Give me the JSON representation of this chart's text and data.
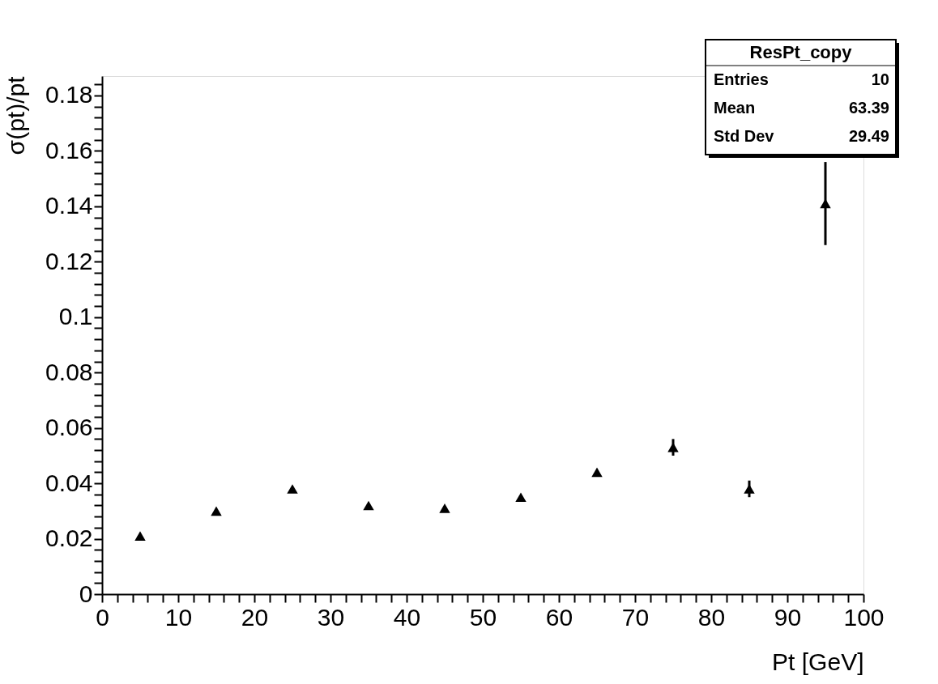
{
  "chart_data": {
    "type": "scatter",
    "title": "ResPt_copy",
    "xlabel": "Pt [GeV]",
    "ylabel": "σ(pt)/pt",
    "x": [
      5,
      15,
      25,
      35,
      45,
      55,
      65,
      75,
      85,
      95
    ],
    "series": [
      {
        "color": "#000000",
        "values": [
          0.021,
          0.03,
          0.038,
          0.032,
          0.031,
          0.035,
          0.044,
          0.053,
          0.038,
          0.141
        ],
        "errors": [
          null,
          null,
          null,
          null,
          null,
          null,
          null,
          0.003,
          0.003,
          0.015
        ]
      }
    ],
    "marker": "triangle",
    "xlim": [
      0,
      100
    ],
    "xticks": [
      0,
      {
        "value": 2,
        "label": null
      },
      {
        "value": 4,
        "label": null
      },
      {
        "value": 6,
        "label": null
      },
      {
        "value": 8,
        "label": null
      },
      10,
      {
        "value": 12,
        "label": null
      },
      {
        "value": 14,
        "label": null
      },
      {
        "value": 16,
        "label": null
      },
      {
        "value": 18,
        "label": null
      },
      20,
      {
        "value": 22,
        "label": null
      },
      {
        "value": 24,
        "label": null
      },
      {
        "value": 26,
        "label": null
      },
      {
        "value": 28,
        "label": null
      },
      30,
      {
        "value": 32,
        "label": null
      },
      {
        "value": 34,
        "label": null
      },
      {
        "value": 36,
        "label": null
      },
      {
        "value": 38,
        "label": null
      },
      40,
      {
        "value": 42,
        "label": null
      },
      {
        "value": 44,
        "label": null
      },
      {
        "value": 46,
        "label": null
      },
      {
        "value": 48,
        "label": null
      },
      50,
      {
        "value": 52,
        "label": null
      },
      {
        "value": 54,
        "label": null
      },
      {
        "value": 56,
        "label": null
      },
      {
        "value": 58,
        "label": null
      },
      60,
      {
        "value": 62,
        "label": null
      },
      {
        "value": 64,
        "label": null
      },
      {
        "value": 66,
        "label": null
      },
      {
        "value": 68,
        "label": null
      },
      70,
      {
        "value": 72,
        "label": null
      },
      {
        "value": 74,
        "label": null
      },
      {
        "value": 76,
        "label": null
      },
      {
        "value": 78,
        "label": null
      },
      80,
      {
        "value": 82,
        "label": null
      },
      {
        "value": 84,
        "label": null
      },
      {
        "value": 86,
        "label": null
      },
      {
        "value": 88,
        "label": null
      },
      90,
      {
        "value": 92,
        "label": null
      },
      {
        "value": 94,
        "label": null
      },
      {
        "value": 96,
        "label": null
      },
      {
        "value": 98,
        "label": null
      },
      100
    ],
    "ylim": [
      0,
      0.187
    ],
    "yticks": [
      0,
      {
        "value": 0.004,
        "label": null
      },
      {
        "value": 0.008,
        "label": null
      },
      {
        "value": 0.012,
        "label": null
      },
      {
        "value": 0.016,
        "label": null
      },
      0.02,
      {
        "value": 0.024,
        "label": null
      },
      {
        "value": 0.028,
        "label": null
      },
      {
        "value": 0.032,
        "label": null
      },
      {
        "value": 0.036,
        "label": null
      },
      0.04,
      {
        "value": 0.044,
        "label": null
      },
      {
        "value": 0.048,
        "label": null
      },
      {
        "value": 0.052,
        "label": null
      },
      {
        "value": 0.056,
        "label": null
      },
      0.06,
      {
        "value": 0.064,
        "label": null
      },
      {
        "value": 0.068,
        "label": null
      },
      {
        "value": 0.072,
        "label": null
      },
      {
        "value": 0.076,
        "label": null
      },
      0.08,
      {
        "value": 0.084,
        "label": null
      },
      {
        "value": 0.088,
        "label": null
      },
      {
        "value": 0.092,
        "label": null
      },
      {
        "value": 0.096,
        "label": null
      },
      0.1,
      {
        "value": 0.104,
        "label": null
      },
      {
        "value": 0.108,
        "label": null
      },
      {
        "value": 0.112,
        "label": null
      },
      {
        "value": 0.116,
        "label": null
      },
      0.12,
      {
        "value": 0.124,
        "label": null
      },
      {
        "value": 0.128,
        "label": null
      },
      {
        "value": 0.132,
        "label": null
      },
      {
        "value": 0.136,
        "label": null
      },
      0.14,
      {
        "value": 0.144,
        "label": null
      },
      {
        "value": 0.148,
        "label": null
      },
      {
        "value": 0.152,
        "label": null
      },
      {
        "value": 0.156,
        "label": null
      },
      0.16,
      {
        "value": 0.164,
        "label": null
      },
      {
        "value": 0.168,
        "label": null
      },
      {
        "value": 0.172,
        "label": null
      },
      {
        "value": 0.176,
        "label": null
      },
      0.18,
      {
        "value": 0.184,
        "label": null
      }
    ],
    "annotations": [
      "Entries",
      "10",
      "Mean",
      "63.39",
      "Std Dev",
      "29.49"
    ]
  }
}
